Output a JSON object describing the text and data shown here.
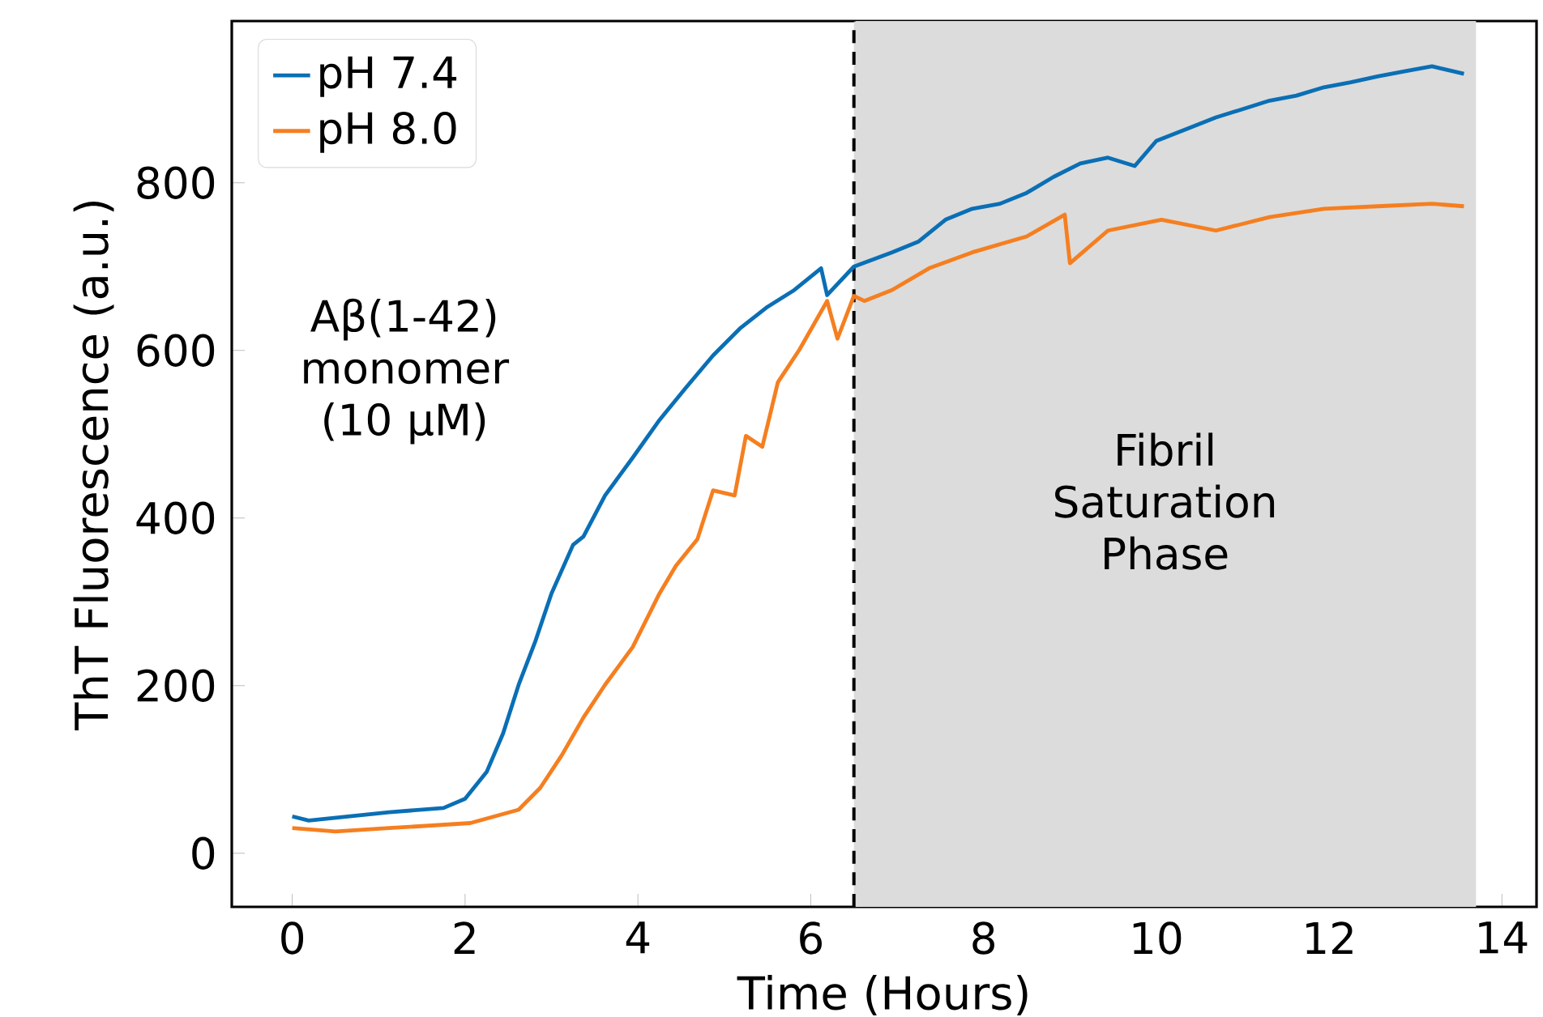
{
  "chart_data": {
    "type": "line",
    "xlabel": "Time (Hours)",
    "ylabel": "ThT Fluorescence (a.u.)",
    "xlim": [
      -0.7,
      14.4
    ],
    "ylim": [
      -64,
      993
    ],
    "xticks": [
      0,
      2,
      4,
      6,
      8,
      10,
      12,
      14
    ],
    "yticks": [
      0,
      200,
      400,
      600,
      800
    ],
    "legend": "top left",
    "grid": false,
    "annotations": [
      "Aβ(1-42) monomer (10 μM)"
    ],
    "ref_lines": [
      {
        "axis": "x",
        "value": 6.5,
        "color": "#000000",
        "line_style": "dashed"
      }
    ],
    "bands": [
      {
        "axis": "x",
        "from": 6.5,
        "to": 13.7,
        "label": "Fibril Saturation Phase",
        "color": "#dcdcdc"
      }
    ],
    "series": [
      {
        "name": "pH 7.4",
        "color": "#0a6fb5",
        "x": [
          0.0,
          0.19,
          1.12,
          1.75,
          2.0,
          2.25,
          2.44,
          2.62,
          2.81,
          3.0,
          3.25,
          3.37,
          3.62,
          3.94,
          4.25,
          4.56,
          4.87,
          5.19,
          5.5,
          5.81,
          6.12,
          6.19,
          6.5,
          6.94,
          7.25,
          7.56,
          7.87,
          8.19,
          8.5,
          8.81,
          9.12,
          9.44,
          9.75,
          10.0,
          10.37,
          10.69,
          11.0,
          11.31,
          11.62,
          11.94,
          12.25,
          12.56,
          12.87,
          13.19,
          13.56
        ],
        "values": [
          44,
          39,
          49,
          54,
          65,
          97,
          143,
          201,
          252,
          310,
          368,
          378,
          427,
          472,
          517,
          556,
          594,
          627,
          652,
          672,
          698,
          666,
          700,
          717,
          730,
          756,
          769,
          775,
          788,
          807,
          823,
          830,
          820,
          850,
          865,
          878,
          888,
          898,
          904,
          914,
          920,
          927,
          933,
          939,
          930
        ]
      },
      {
        "name": "pH 8.0",
        "color": "#f57f20",
        "x": [
          0.0,
          0.5,
          1.12,
          2.06,
          2.62,
          2.87,
          3.12,
          3.37,
          3.62,
          3.94,
          4.25,
          4.44,
          4.69,
          4.87,
          5.12,
          5.25,
          5.44,
          5.62,
          5.87,
          6.19,
          6.31,
          6.5,
          6.62,
          6.94,
          7.37,
          7.87,
          8.5,
          8.94,
          9.0,
          9.44,
          10.06,
          10.69,
          11.31,
          11.94,
          12.56,
          13.19,
          13.56
        ],
        "values": [
          30,
          26,
          30,
          36,
          52,
          78,
          117,
          162,
          201,
          246,
          310,
          343,
          375,
          433,
          427,
          498,
          485,
          562,
          601,
          659,
          614,
          665,
          659,
          672,
          698,
          717,
          736,
          762,
          704,
          743,
          756,
          743,
          759,
          769,
          772,
          775,
          772
        ]
      }
    ]
  }
}
